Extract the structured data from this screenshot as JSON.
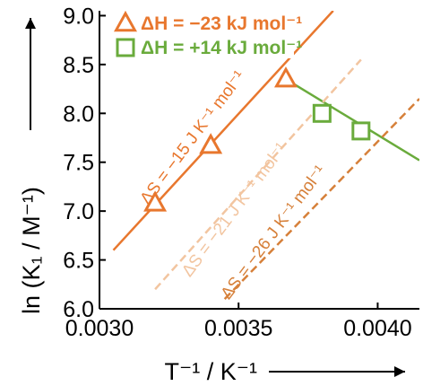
{
  "chart_data": {
    "type": "scatter",
    "xlabel": "T⁻¹ / K⁻¹",
    "ylabel": "ln (K₁ / M⁻¹)",
    "xlim": [
      0.003,
      0.00415
    ],
    "ylim": [
      6.0,
      9.05
    ],
    "xticks": [
      "0.0030",
      "0.0035",
      "0.0040"
    ],
    "yticks": [
      "6.0",
      "6.5",
      "7.0",
      "7.5",
      "8.0",
      "8.5",
      "9.0"
    ],
    "grid": false,
    "legend_position": "top-left",
    "colors": {
      "orange": "#e8772e",
      "green": "#6aab3c",
      "orange_light": "#f2c5a0",
      "orange_dark": "#d6803a"
    },
    "series": [
      {
        "name": "ΔH = −23 kJ mol⁻¹",
        "marker": "triangle",
        "color": "#e8772e",
        "points": [
          [
            0.0032,
            7.08
          ],
          [
            0.0034,
            7.67
          ],
          [
            0.00367,
            8.35
          ]
        ]
      },
      {
        "name": "ΔH = +14 kJ mol⁻¹",
        "marker": "square",
        "color": "#6aab3c",
        "points": [
          [
            0.0038,
            8.0
          ],
          [
            0.00394,
            7.82
          ]
        ]
      }
    ],
    "lines": [
      {
        "style": "solid",
        "color": "#e8772e",
        "from": [
          0.00305,
          6.6
        ],
        "to": [
          0.00384,
          9.05
        ]
      },
      {
        "style": "solid",
        "color": "#6aab3c",
        "from": [
          0.00367,
          8.35
        ],
        "to": [
          0.00415,
          7.52
        ]
      },
      {
        "style": "dashed",
        "color": "#f2c5a0",
        "from": [
          0.0032,
          6.2
        ],
        "to": [
          0.00394,
          8.55
        ]
      },
      {
        "style": "dashed",
        "color": "#d6803a",
        "from": [
          0.00345,
          6.1
        ],
        "to": [
          0.00415,
          8.15
        ]
      }
    ],
    "annotations": [
      {
        "text": "ΔS = −15 J K⁻¹ mol⁻¹",
        "color": "#e8772e",
        "x": 0.00335,
        "y": 7.72
      },
      {
        "text": "ΔS = −21 J K⁻¹ mol⁻¹",
        "color": "#f2c5a0",
        "x": 0.0035,
        "y": 6.98
      },
      {
        "text": "ΔS = −26 J K⁻¹ mol⁻¹",
        "color": "#d6803a",
        "x": 0.00364,
        "y": 6.75
      }
    ]
  }
}
